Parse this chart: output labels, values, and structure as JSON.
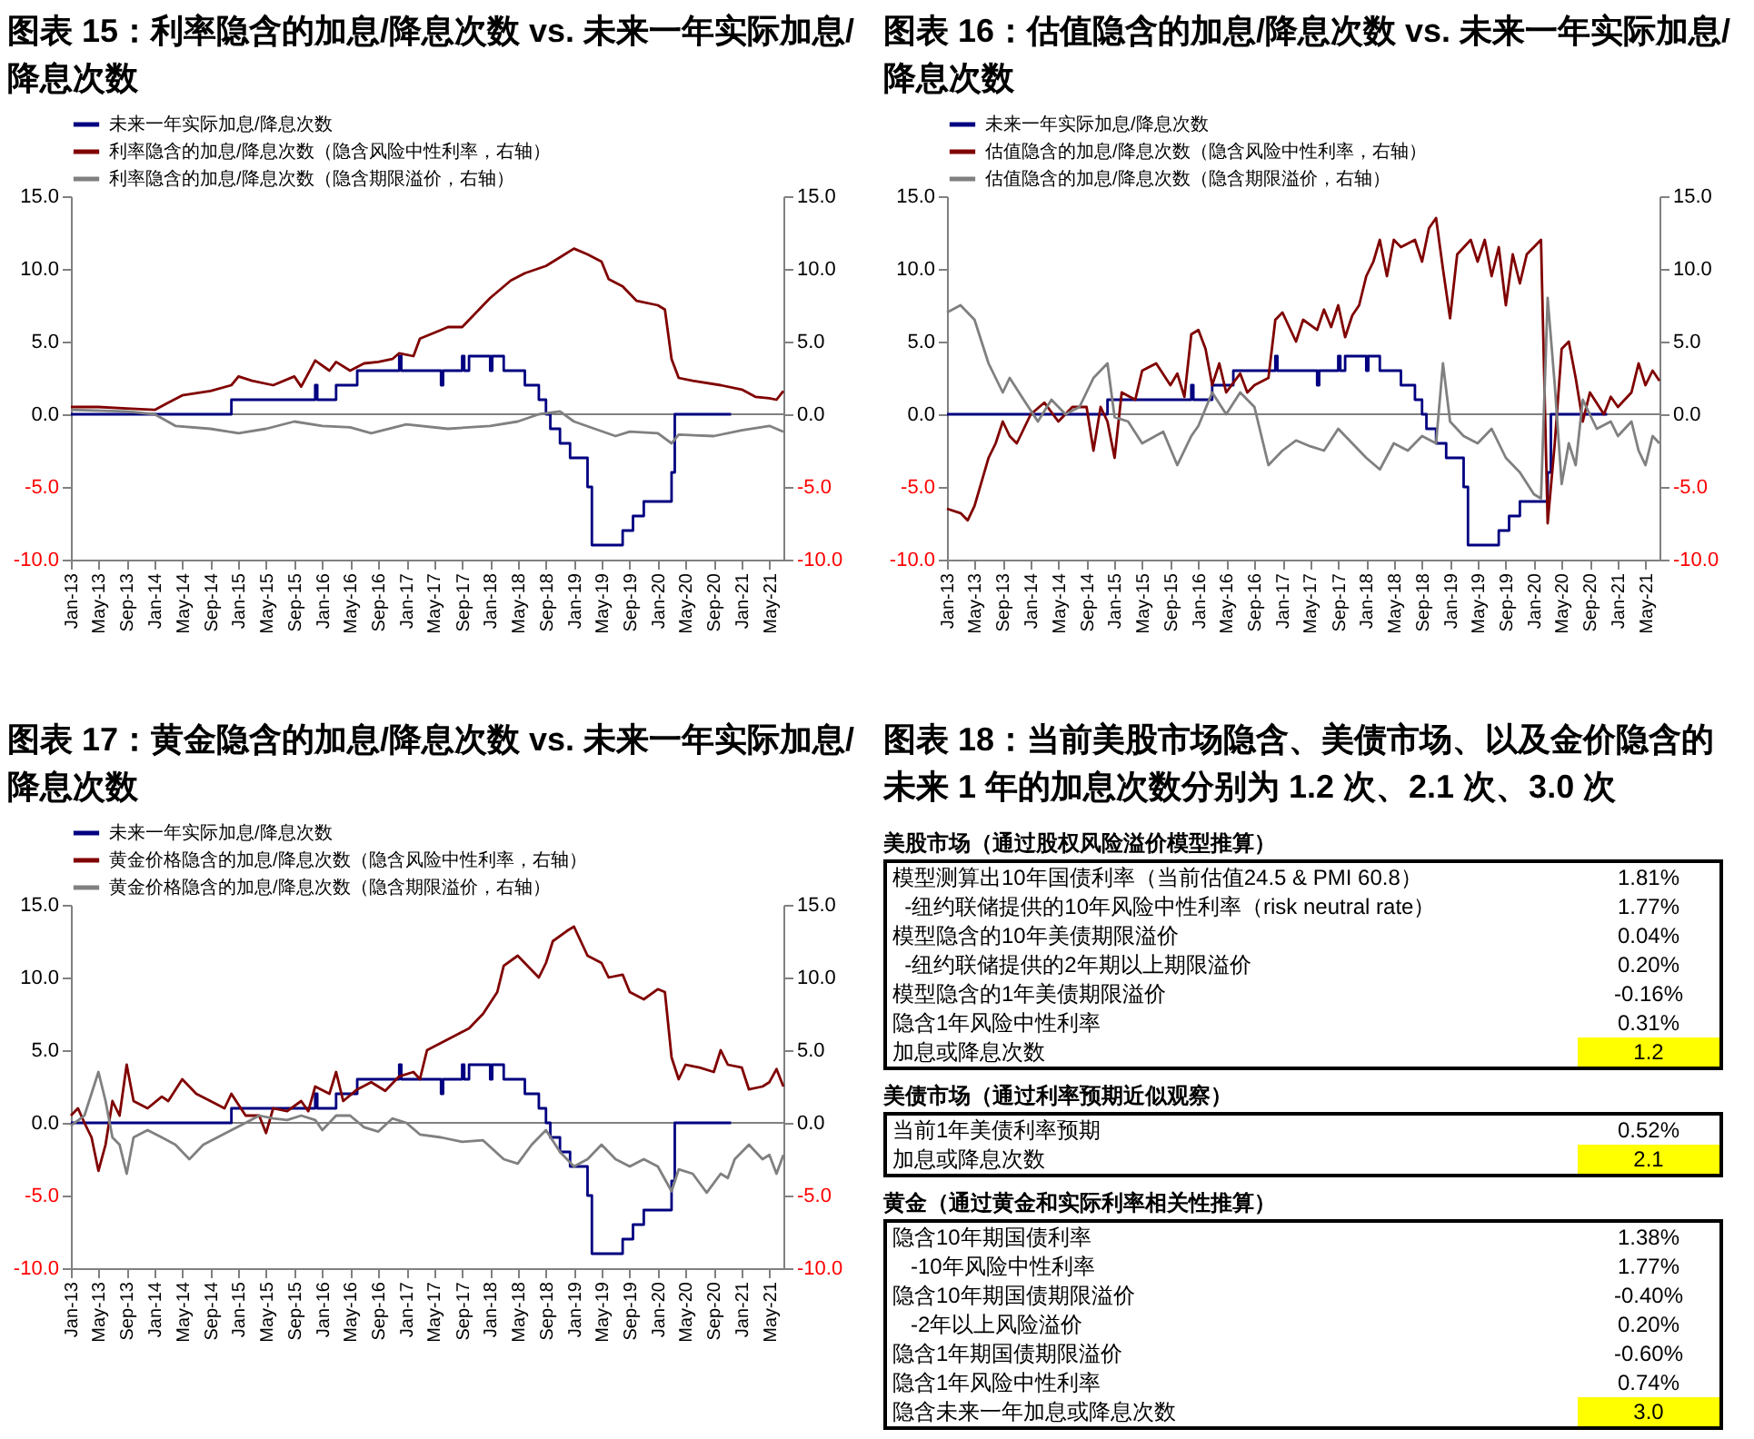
{
  "chart_data": [
    {
      "type": "line",
      "title": "图表 15：利率隐含的加息/降息次数 vs. 未来一年实际加息/降息次数",
      "xlim": [
        "2013-01",
        "2021-07"
      ],
      "xticks": [
        {
          "value": "2013-01",
          "label": "Jan-13"
        },
        {
          "value": "2013-05",
          "label": "May-13"
        },
        {
          "value": "2013-09",
          "label": "Sep-13"
        },
        {
          "value": "2014-01",
          "label": "Jan-14"
        },
        {
          "value": "2014-05",
          "label": "May-14"
        },
        {
          "value": "2014-09",
          "label": "Sep-14"
        },
        {
          "value": "2015-01",
          "label": "Jan-15"
        },
        {
          "value": "2015-05",
          "label": "May-15"
        },
        {
          "value": "2015-09",
          "label": "Sep-15"
        },
        {
          "value": "2016-01",
          "label": "Jan-16"
        },
        {
          "value": "2016-05",
          "label": "May-16"
        },
        {
          "value": "2016-09",
          "label": "Sep-16"
        },
        {
          "value": "2017-01",
          "label": "Jan-17"
        },
        {
          "value": "2017-05",
          "label": "May-17"
        },
        {
          "value": "2017-09",
          "label": "Sep-17"
        },
        {
          "value": "2018-01",
          "label": "Jan-18"
        },
        {
          "value": "2018-05",
          "label": "May-18"
        },
        {
          "value": "2018-09",
          "label": "Sep-18"
        },
        {
          "value": "2019-01",
          "label": "Jan-19"
        },
        {
          "value": "2019-05",
          "label": "May-19"
        },
        {
          "value": "2019-09",
          "label": "Sep-19"
        },
        {
          "value": "2020-01",
          "label": "Jan-20"
        },
        {
          "value": "2020-05",
          "label": "May-20"
        },
        {
          "value": "2020-09",
          "label": "Sep-20"
        },
        {
          "value": "2021-01",
          "label": "Jan-21"
        },
        {
          "value": "2021-05",
          "label": "May-21"
        }
      ],
      "ylim": [
        -10,
        15
      ],
      "yticks": [
        {
          "value": -10,
          "label": "-10.0"
        },
        {
          "value": -5,
          "label": "-5.0"
        },
        {
          "value": 0,
          "label": "0.0"
        },
        {
          "value": 5,
          "label": "5.0"
        },
        {
          "value": 10,
          "label": "10.0"
        },
        {
          "value": 15,
          "label": "15.0"
        }
      ],
      "y2lim": [
        -10,
        15
      ],
      "y2ticks": [
        {
          "value": -10,
          "label": "-10.0"
        },
        {
          "value": -5,
          "label": "-5.0"
        },
        {
          "value": 0,
          "label": "0.0"
        },
        {
          "value": 5,
          "label": "5.0"
        },
        {
          "value": 10,
          "label": "10.0"
        },
        {
          "value": 15,
          "label": "15.0"
        }
      ],
      "legend": "top",
      "ref_lines": [
        {
          "axis": "y",
          "value": 0,
          "color": "#808080"
        }
      ],
      "series": [
        {
          "name": "未来一年实际加息/降息次数",
          "type": "step",
          "color": "#000080",
          "x": [
            "2013-01-01",
            "2014-12-01",
            "2015-12-01",
            "2015-12-10",
            "2016-03-01",
            "2016-06-01",
            "2016-12-01",
            "2016-12-10",
            "2017-06-01",
            "2017-06-10",
            "2017-09-01",
            "2017-09-10",
            "2017-10-01",
            "2018-01-01",
            "2018-01-10",
            "2018-03-01",
            "2018-06-01",
            "2018-08-01",
            "2018-09-01",
            "2018-09-20",
            "2018-11-01",
            "2018-12-15",
            "2019-03-01",
            "2019-03-20",
            "2019-08-01",
            "2019-09-15",
            "2019-11-01",
            "2020-03-01",
            "2020-03-15",
            "2020-11-15"
          ],
          "values": [
            0,
            1,
            2,
            1,
            2,
            3,
            4,
            3,
            2,
            3,
            4,
            3,
            4,
            3,
            4,
            3,
            2,
            1,
            0,
            -1,
            -2,
            -3,
            -5,
            -9,
            -8,
            -7,
            -6,
            -4,
            0,
            0
          ]
        },
        {
          "name": "利率隐含的加息/降息次数（隐含风险中性利率，右轴）",
          "type": "line",
          "axis": "y2",
          "color": "#800000",
          "x": [
            "2013-01",
            "2013-05",
            "2013-09",
            "2014-01",
            "2014-03",
            "2014-05",
            "2014-09",
            "2014-12",
            "2015-01",
            "2015-03",
            "2015-06",
            "2015-09",
            "2015-10",
            "2015-12",
            "2016-02",
            "2016-03",
            "2016-05",
            "2016-07",
            "2016-09",
            "2016-11",
            "2016-12",
            "2017-02",
            "2017-03",
            "2017-06",
            "2017-07",
            "2017-09",
            "2017-11",
            "2018-01",
            "2018-04",
            "2018-06",
            "2018-09",
            "2018-11",
            "2019-01",
            "2019-03",
            "2019-05",
            "2019-06",
            "2019-08",
            "2019-10",
            "2020-01",
            "2020-02",
            "2020-03",
            "2020-04",
            "2020-06",
            "2020-10",
            "2021-01",
            "2021-03",
            "2021-05",
            "2021-06",
            "2021-07"
          ],
          "values": [
            0.5,
            0.5,
            0.4,
            0.3,
            0.8,
            1.3,
            1.6,
            2.0,
            2.6,
            2.3,
            2.0,
            2.6,
            1.9,
            3.7,
            3.0,
            3.6,
            3.0,
            3.5,
            3.6,
            3.8,
            4.2,
            4.0,
            5.2,
            5.8,
            6.0,
            6.0,
            7.0,
            8.0,
            9.2,
            9.7,
            10.2,
            10.8,
            11.4,
            11.0,
            10.5,
            9.3,
            8.8,
            7.8,
            7.5,
            7.2,
            3.8,
            2.5,
            2.3,
            2.0,
            1.7,
            1.2,
            1.1,
            1.0,
            1.6
          ]
        },
        {
          "name": "利率隐含的加息/降息次数（隐含期限溢价，右轴）",
          "type": "line",
          "axis": "y2",
          "color": "#808080",
          "x": [
            "2013-01",
            "2013-09",
            "2014-01",
            "2014-04",
            "2014-09",
            "2015-01",
            "2015-05",
            "2015-09",
            "2016-01",
            "2016-05",
            "2016-08",
            "2017-01",
            "2017-07",
            "2018-01",
            "2018-05",
            "2018-08",
            "2018-11",
            "2019-01",
            "2019-04",
            "2019-07",
            "2019-09",
            "2020-01",
            "2020-03",
            "2020-04",
            "2020-09",
            "2021-01",
            "2021-05",
            "2021-07"
          ],
          "values": [
            0.3,
            0.2,
            0,
            -0.8,
            -1.0,
            -1.3,
            -1.0,
            -0.5,
            -0.8,
            -0.9,
            -1.3,
            -0.7,
            -1.0,
            -0.8,
            -0.5,
            0,
            0.2,
            -0.5,
            -1.0,
            -1.5,
            -1.2,
            -1.3,
            -2.0,
            -1.4,
            -1.5,
            -1.1,
            -0.8,
            -1.2
          ]
        }
      ]
    },
    {
      "type": "line",
      "title": "图表 16：估值隐含的加息/降息次数 vs. 未来一年实际加息/降息次数",
      "xlim": [
        "2013-01",
        "2021-07"
      ],
      "xticks": [
        {
          "value": "2013-01",
          "label": "Jan-13"
        },
        {
          "value": "2013-05",
          "label": "May-13"
        },
        {
          "value": "2013-09",
          "label": "Sep-13"
        },
        {
          "value": "2014-01",
          "label": "Jan-14"
        },
        {
          "value": "2014-05",
          "label": "May-14"
        },
        {
          "value": "2014-09",
          "label": "Sep-14"
        },
        {
          "value": "2015-01",
          "label": "Jan-15"
        },
        {
          "value": "2015-05",
          "label": "May-15"
        },
        {
          "value": "2015-09",
          "label": "Sep-15"
        },
        {
          "value": "2016-01",
          "label": "Jan-16"
        },
        {
          "value": "2016-05",
          "label": "May-16"
        },
        {
          "value": "2016-09",
          "label": "Sep-16"
        },
        {
          "value": "2017-01",
          "label": "Jan-17"
        },
        {
          "value": "2017-05",
          "label": "May-17"
        },
        {
          "value": "2017-09",
          "label": "Sep-17"
        },
        {
          "value": "2018-01",
          "label": "Jan-18"
        },
        {
          "value": "2018-05",
          "label": "May-18"
        },
        {
          "value": "2018-09",
          "label": "Sep-18"
        },
        {
          "value": "2019-01",
          "label": "Jan-19"
        },
        {
          "value": "2019-05",
          "label": "May-19"
        },
        {
          "value": "2019-09",
          "label": "Sep-19"
        },
        {
          "value": "2020-01",
          "label": "Jan-20"
        },
        {
          "value": "2020-05",
          "label": "May-20"
        },
        {
          "value": "2020-09",
          "label": "Sep-20"
        },
        {
          "value": "2021-01",
          "label": "Jan-21"
        },
        {
          "value": "2021-05",
          "label": "May-21"
        }
      ],
      "ylim": [
        -10,
        15
      ],
      "yticks": [
        {
          "value": -10,
          "label": "-10.0"
        },
        {
          "value": -5,
          "label": "-5.0"
        },
        {
          "value": 0,
          "label": "0.0"
        },
        {
          "value": 5,
          "label": "5.0"
        },
        {
          "value": 10,
          "label": "10.0"
        },
        {
          "value": 15,
          "label": "15.0"
        }
      ],
      "y2lim": [
        -10,
        15
      ],
      "y2ticks": [
        {
          "value": -10,
          "label": "-10.0"
        },
        {
          "value": -5,
          "label": "-5.0"
        },
        {
          "value": 0,
          "label": "0.0"
        },
        {
          "value": 5,
          "label": "5.0"
        },
        {
          "value": 10,
          "label": "10.0"
        },
        {
          "value": 15,
          "label": "15.0"
        }
      ],
      "legend": "top",
      "ref_lines": [
        {
          "axis": "y",
          "value": 0,
          "color": "#808080"
        }
      ],
      "series": [
        {
          "name": "未来一年实际加息/降息次数",
          "type": "step",
          "color": "#000080",
          "x": [
            "2013-01-01",
            "2014-12-01",
            "2015-12-01",
            "2015-12-10",
            "2016-03-01",
            "2016-06-01",
            "2016-12-01",
            "2016-12-10",
            "2017-06-01",
            "2017-06-10",
            "2017-09-01",
            "2017-09-10",
            "2017-10-01",
            "2018-01-01",
            "2018-01-10",
            "2018-03-01",
            "2018-06-01",
            "2018-08-01",
            "2018-09-01",
            "2018-09-20",
            "2018-11-01",
            "2018-12-15",
            "2019-03-01",
            "2019-03-20",
            "2019-08-01",
            "2019-09-15",
            "2019-11-01",
            "2020-03-01",
            "2020-03-15",
            "2020-11-15"
          ],
          "values": [
            0,
            1,
            2,
            1,
            2,
            3,
            4,
            3,
            2,
            3,
            4,
            3,
            4,
            3,
            4,
            3,
            2,
            1,
            0,
            -1,
            -2,
            -3,
            -5,
            -9,
            -8,
            -7,
            -6,
            -4,
            0,
            0
          ]
        },
        {
          "name": "估值隐含的加息/降息次数（隐含风险中性利率，右轴）",
          "type": "line",
          "axis": "y2",
          "color": "#800000",
          "x": [
            "2013-01",
            "2013-03",
            "2013-04",
            "2013-05",
            "2013-07",
            "2013-08",
            "2013-09",
            "2013-10",
            "2013-11",
            "2014-01",
            "2014-03",
            "2014-05",
            "2014-07",
            "2014-09",
            "2014-10",
            "2014-11",
            "2014-12",
            "2015-01",
            "2015-02",
            "2015-04",
            "2015-05",
            "2015-07",
            "2015-09",
            "2015-10",
            "2015-11",
            "2015-12",
            "2016-01",
            "2016-02",
            "2016-03",
            "2016-04",
            "2016-05",
            "2016-07",
            "2016-08",
            "2016-09",
            "2016-11",
            "2016-12",
            "2017-01",
            "2017-03",
            "2017-04",
            "2017-06",
            "2017-07",
            "2017-08",
            "2017-09",
            "2017-10",
            "2017-11",
            "2017-12",
            "2018-01",
            "2018-02",
            "2018-03",
            "2018-04",
            "2018-05",
            "2018-06",
            "2018-08",
            "2018-09",
            "2018-10",
            "2018-11",
            "2018-12",
            "2019-01",
            "2019-02",
            "2019-04",
            "2019-05",
            "2019-06",
            "2019-07",
            "2019-08",
            "2019-09",
            "2019-10",
            "2019-11",
            "2019-12",
            "2020-01",
            "2020-02",
            "2020-03",
            "2020-04",
            "2020-05",
            "2020-06",
            "2020-07",
            "2020-08",
            "2020-09",
            "2020-11",
            "2020-12",
            "2021-01",
            "2021-03",
            "2021-04",
            "2021-05",
            "2021-06",
            "2021-07"
          ],
          "values": [
            -6.5,
            -6.8,
            -7.3,
            -6.3,
            -3.0,
            -2.0,
            -0.5,
            -1.5,
            -2.0,
            0,
            0.8,
            -0.5,
            0.5,
            0.5,
            -2.5,
            0.5,
            -0.5,
            -3.0,
            1.5,
            1.0,
            3.0,
            3.5,
            2.0,
            2.8,
            1.2,
            5.5,
            5.8,
            4.5,
            2.0,
            3.5,
            1.5,
            2.8,
            1.5,
            2.0,
            2.5,
            6.5,
            7.0,
            5.0,
            6.5,
            5.8,
            7.2,
            6.0,
            7.5,
            5.3,
            6.8,
            7.5,
            9.5,
            10.5,
            12.0,
            9.5,
            12.0,
            11.5,
            12.0,
            10.5,
            12.8,
            13.5,
            10.0,
            6.6,
            11.0,
            12.0,
            10.5,
            12.0,
            9.5,
            11.5,
            7.5,
            11.0,
            9.0,
            11.0,
            11.5,
            12.0,
            -7.5,
            -2.0,
            4.5,
            5.0,
            2.5,
            -0.5,
            1.5,
            0.0,
            1.2,
            0.5,
            1.5,
            3.5,
            2.0,
            3.0,
            2.3
          ]
        },
        {
          "name": "估值隐含的加息/降息次数（隐含期限溢价，右轴）",
          "type": "line",
          "axis": "y2",
          "color": "#808080",
          "x": [
            "2013-01",
            "2013-03",
            "2013-05",
            "2013-07",
            "2013-09",
            "2013-10",
            "2013-12",
            "2014-02",
            "2014-04",
            "2014-06",
            "2014-08",
            "2014-10",
            "2014-12",
            "2015-01",
            "2015-03",
            "2015-05",
            "2015-08",
            "2015-10",
            "2015-12",
            "2016-01",
            "2016-03",
            "2016-05",
            "2016-07",
            "2016-09",
            "2016-11",
            "2017-01",
            "2017-03",
            "2017-05",
            "2017-07",
            "2017-09",
            "2017-11",
            "2018-01",
            "2018-03",
            "2018-05",
            "2018-07",
            "2018-09",
            "2018-11",
            "2018-12",
            "2019-01",
            "2019-03",
            "2019-05",
            "2019-07",
            "2019-09",
            "2019-11",
            "2020-01",
            "2020-02",
            "2020-03",
            "2020-04",
            "2020-05",
            "2020-06",
            "2020-07",
            "2020-08",
            "2020-10",
            "2020-12",
            "2021-01",
            "2021-03",
            "2021-04",
            "2021-05",
            "2021-06",
            "2021-07"
          ],
          "values": [
            7.0,
            7.5,
            6.5,
            3.5,
            1.5,
            2.5,
            1.0,
            -0.5,
            1.0,
            0.0,
            0.5,
            2.5,
            3.5,
            -0.2,
            -0.5,
            -2.0,
            -1.2,
            -3.5,
            -1.5,
            -0.8,
            1.5,
            0.0,
            1.5,
            0.5,
            -3.5,
            -2.5,
            -1.8,
            -2.2,
            -2.5,
            -1.0,
            -2.0,
            -3.0,
            -3.8,
            -2.0,
            -2.5,
            -1.5,
            -2.0,
            3.5,
            -0.5,
            -1.5,
            -2.0,
            -1.0,
            -3.0,
            -4.0,
            -5.5,
            -5.8,
            8.0,
            2.0,
            -4.8,
            -2.0,
            -3.5,
            1.0,
            -1.0,
            -0.5,
            -1.5,
            -0.5,
            -2.5,
            -3.5,
            -1.5,
            -2.0
          ]
        }
      ]
    },
    {
      "type": "line",
      "title": "图表 17：黄金隐含的加息/降息次数 vs. 未来一年实际加息/降息次数",
      "xlim": [
        "2013-01",
        "2021-07"
      ],
      "xticks": [
        {
          "value": "2013-01",
          "label": "Jan-13"
        },
        {
          "value": "2013-05",
          "label": "May-13"
        },
        {
          "value": "2013-09",
          "label": "Sep-13"
        },
        {
          "value": "2014-01",
          "label": "Jan-14"
        },
        {
          "value": "2014-05",
          "label": "May-14"
        },
        {
          "value": "2014-09",
          "label": "Sep-14"
        },
        {
          "value": "2015-01",
          "label": "Jan-15"
        },
        {
          "value": "2015-05",
          "label": "May-15"
        },
        {
          "value": "2015-09",
          "label": "Sep-15"
        },
        {
          "value": "2016-01",
          "label": "Jan-16"
        },
        {
          "value": "2016-05",
          "label": "May-16"
        },
        {
          "value": "2016-09",
          "label": "Sep-16"
        },
        {
          "value": "2017-01",
          "label": "Jan-17"
        },
        {
          "value": "2017-05",
          "label": "May-17"
        },
        {
          "value": "2017-09",
          "label": "Sep-17"
        },
        {
          "value": "2018-01",
          "label": "Jan-18"
        },
        {
          "value": "2018-05",
          "label": "May-18"
        },
        {
          "value": "2018-09",
          "label": "Sep-18"
        },
        {
          "value": "2019-01",
          "label": "Jan-19"
        },
        {
          "value": "2019-05",
          "label": "May-19"
        },
        {
          "value": "2019-09",
          "label": "Sep-19"
        },
        {
          "value": "2020-01",
          "label": "Jan-20"
        },
        {
          "value": "2020-05",
          "label": "May-20"
        },
        {
          "value": "2020-09",
          "label": "Sep-20"
        },
        {
          "value": "2021-01",
          "label": "Jan-21"
        },
        {
          "value": "2021-05",
          "label": "May-21"
        }
      ],
      "ylim": [
        -10,
        15
      ],
      "yticks": [
        {
          "value": -10,
          "label": "-10.0"
        },
        {
          "value": -5,
          "label": "-5.0"
        },
        {
          "value": 0,
          "label": "0.0"
        },
        {
          "value": 5,
          "label": "5.0"
        },
        {
          "value": 10,
          "label": "10.0"
        },
        {
          "value": 15,
          "label": "15.0"
        }
      ],
      "y2lim": [
        -10,
        15
      ],
      "y2ticks": [
        {
          "value": -10,
          "label": "-10.0"
        },
        {
          "value": -5,
          "label": "-5.0"
        },
        {
          "value": 0,
          "label": "0.0"
        },
        {
          "value": 5,
          "label": "5.0"
        },
        {
          "value": 10,
          "label": "10.0"
        },
        {
          "value": 15,
          "label": "15.0"
        }
      ],
      "legend": "top",
      "ref_lines": [
        {
          "axis": "y",
          "value": 0,
          "color": "#808080"
        }
      ],
      "series": [
        {
          "name": "未来一年实际加息/降息次数",
          "type": "step",
          "color": "#000080",
          "x": [
            "2013-01-01",
            "2014-12-01",
            "2015-12-01",
            "2015-12-10",
            "2016-03-01",
            "2016-06-01",
            "2016-12-01",
            "2016-12-10",
            "2017-06-01",
            "2017-06-10",
            "2017-09-01",
            "2017-09-10",
            "2017-10-01",
            "2018-01-01",
            "2018-01-10",
            "2018-03-01",
            "2018-06-01",
            "2018-08-01",
            "2018-09-01",
            "2018-09-20",
            "2018-11-01",
            "2018-12-15",
            "2019-03-01",
            "2019-03-20",
            "2019-08-01",
            "2019-09-15",
            "2019-11-01",
            "2020-03-01",
            "2020-03-15",
            "2020-11-15"
          ],
          "values": [
            0,
            1,
            2,
            1,
            2,
            3,
            4,
            3,
            2,
            3,
            4,
            3,
            4,
            3,
            4,
            3,
            2,
            1,
            0,
            -1,
            -2,
            -3,
            -5,
            -9,
            -8,
            -7,
            -6,
            -4,
            0,
            0
          ]
        },
        {
          "name": "黄金价格隐含的加息/降息次数（隐含风险中性利率，右轴）",
          "type": "line",
          "axis": "y2",
          "color": "#800000",
          "x": [
            "2013-01",
            "2013-02",
            "2013-03",
            "2013-04",
            "2013-05",
            "2013-06",
            "2013-07",
            "2013-08",
            "2013-09",
            "2013-10",
            "2013-12",
            "2014-02",
            "2014-03",
            "2014-05",
            "2014-07",
            "2014-09",
            "2014-11",
            "2014-12",
            "2015-02",
            "2015-04",
            "2015-05",
            "2015-06",
            "2015-08",
            "2015-10",
            "2015-11",
            "2015-12",
            "2016-02",
            "2016-03",
            "2016-04",
            "2016-06",
            "2016-08",
            "2016-10",
            "2016-12",
            "2017-02",
            "2017-03",
            "2017-04",
            "2017-06",
            "2017-08",
            "2017-10",
            "2017-12",
            "2018-02",
            "2018-03",
            "2018-05",
            "2018-07",
            "2018-08",
            "2018-09",
            "2018-10",
            "2018-12",
            "2019-01",
            "2019-03",
            "2019-05",
            "2019-06",
            "2019-08",
            "2019-09",
            "2019-11",
            "2020-01",
            "2020-02",
            "2020-03",
            "2020-04",
            "2020-05",
            "2020-07",
            "2020-09",
            "2020-10",
            "2020-11",
            "2021-01",
            "2021-02",
            "2021-04",
            "2021-05",
            "2021-06",
            "2021-07"
          ],
          "values": [
            0.5,
            1.0,
            0.0,
            -1.0,
            -3.3,
            -1.5,
            1.5,
            0.5,
            4.0,
            1.5,
            1.0,
            1.8,
            1.5,
            3.0,
            2.0,
            1.5,
            1.0,
            2.0,
            0.5,
            0.5,
            -0.7,
            1.0,
            0.8,
            1.5,
            0.8,
            2.5,
            2.0,
            3.5,
            1.5,
            2.3,
            2.8,
            2.2,
            3.2,
            3.5,
            3.0,
            5.0,
            5.5,
            6.0,
            6.5,
            7.5,
            9.0,
            10.8,
            11.5,
            10.5,
            10.0,
            11.0,
            12.5,
            13.2,
            13.5,
            11.5,
            11.0,
            10.0,
            10.2,
            9.0,
            8.5,
            9.2,
            9.0,
            4.5,
            3.0,
            4.0,
            3.8,
            3.5,
            5.0,
            4.0,
            3.8,
            2.3,
            2.5,
            2.8,
            3.7,
            2.5
          ]
        },
        {
          "name": "黄金价格隐含的加息/降息次数（隐含期限溢价，右轴）",
          "type": "line",
          "axis": "y2",
          "color": "#808080",
          "x": [
            "2013-01",
            "2013-03",
            "2013-05",
            "2013-06",
            "2013-07",
            "2013-08",
            "2013-09",
            "2013-10",
            "2013-12",
            "2014-02",
            "2014-04",
            "2014-06",
            "2014-08",
            "2014-10",
            "2014-12",
            "2015-02",
            "2015-04",
            "2015-06",
            "2015-08",
            "2015-10",
            "2015-12",
            "2016-01",
            "2016-03",
            "2016-05",
            "2016-07",
            "2016-09",
            "2016-11",
            "2017-01",
            "2017-03",
            "2017-06",
            "2017-09",
            "2017-12",
            "2018-03",
            "2018-05",
            "2018-07",
            "2018-09",
            "2018-11",
            "2019-01",
            "2019-03",
            "2019-05",
            "2019-07",
            "2019-09",
            "2019-11",
            "2020-01",
            "2020-03",
            "2020-04",
            "2020-06",
            "2020-08",
            "2020-10",
            "2020-11",
            "2020-12",
            "2021-02",
            "2021-04",
            "2021-05",
            "2021-06",
            "2021-07"
          ],
          "values": [
            -0.2,
            0.5,
            3.5,
            1.5,
            -1.0,
            -1.5,
            -3.5,
            -1.0,
            -0.5,
            -1.0,
            -1.5,
            -2.5,
            -1.5,
            -1.0,
            -0.5,
            0,
            0.5,
            0.3,
            0.2,
            0.5,
            0.2,
            -0.5,
            0.5,
            0.5,
            -0.3,
            -0.6,
            0.3,
            0.0,
            -0.8,
            -1.0,
            -1.3,
            -1.2,
            -2.5,
            -2.8,
            -1.5,
            -0.5,
            -2.0,
            -3.0,
            -2.5,
            -1.5,
            -2.5,
            -3.0,
            -2.5,
            -3.0,
            -4.7,
            -3.2,
            -3.5,
            -4.8,
            -3.5,
            -3.8,
            -2.5,
            -1.5,
            -2.5,
            -2.2,
            -3.5,
            -2.2
          ]
        }
      ]
    },
    {
      "type": "other",
      "title": "图表 18：当前美股市场隐含、美债市场、以及金价隐含的未来 1 年的加息次数分别为 1.2 次、2.1 次、3.0 次",
      "subtitle": "美股市场（通过股权风险溢价模型推算）",
      "categories": [
        "模型测算出10年国债利率（当前估值24.5 & PMI 60.8）",
        "  -纽约联储提供的10年风险中性利率（risk neutral rate）",
        "模型隐含的10年美债期限溢价",
        "  -纽约联储提供的2年期以上期限溢价",
        "模型隐含的1年美债期限溢价",
        "隐含1年风险中性利率",
        "加息或降息次数"
      ],
      "value_labels": [
        "1.81%",
        "1.77%",
        "0.04%",
        "0.20%",
        "-0.16%",
        "0.31%",
        "1.2"
      ],
      "colors": [
        null,
        null,
        null,
        null,
        null,
        null,
        "#ffff00"
      ]
    },
    {
      "type": "other",
      "subtitle": "美债市场（通过利率预期近似观察）",
      "categories": [
        "当前1年美债利率预期",
        "加息或降息次数"
      ],
      "value_labels": [
        "0.52%",
        "2.1"
      ],
      "colors": [
        null,
        "#ffff00"
      ]
    },
    {
      "type": "other",
      "subtitle": "黄金（通过黄金和实际利率相关性推算）",
      "categories": [
        "隐含10年期国债利率",
        "   -10年风险中性利率",
        "隐含10年期国债期限溢价",
        "   -2年以上风险溢价",
        "隐含1年期国债期限溢价",
        "隐含1年风险中性利率",
        "隐含未来一年加息或降息次数"
      ],
      "value_labels": [
        "1.38%",
        "1.77%",
        "-0.40%",
        "0.20%",
        "-0.60%",
        "0.74%",
        "3.0"
      ],
      "colors": [
        null,
        null,
        null,
        null,
        null,
        null,
        "#ffff00"
      ]
    }
  ]
}
